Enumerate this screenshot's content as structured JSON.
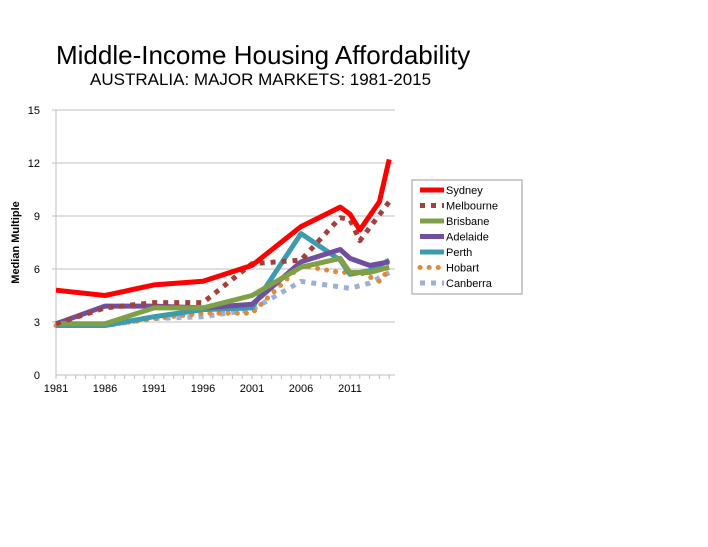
{
  "chart_data": {
    "type": "line",
    "title": "Middle-Income Housing Affordability",
    "subtitle": "AUSTRALIA: MAJOR MARKETS: 1981-2015",
    "xlabel": "",
    "ylabel": "Median Multiple",
    "xlim": [
      1981,
      2015
    ],
    "ylim": [
      0,
      15
    ],
    "yticks": [
      "0",
      "3",
      "6",
      "9",
      "12",
      "15"
    ],
    "xticks": [
      "1981",
      "1986",
      "1991",
      "1996",
      "2001",
      "2006",
      "2011"
    ],
    "grid": true,
    "legend_placement": "right",
    "series": [
      {
        "name": "Sydney",
        "color": "#ff0000",
        "style": "solid",
        "points": [
          [
            1981,
            4.8
          ],
          [
            1986,
            4.5
          ],
          [
            1991,
            5.1
          ],
          [
            1996,
            5.3
          ],
          [
            2001,
            6.2
          ],
          [
            2006,
            8.4
          ],
          [
            2010,
            9.5
          ],
          [
            2011,
            9.1
          ],
          [
            2012,
            8.2
          ],
          [
            2014,
            9.8
          ],
          [
            2015,
            12.2
          ]
        ]
      },
      {
        "name": "Melbourne",
        "color": "#a0413e",
        "style": "dotted",
        "points": [
          [
            1981,
            2.9
          ],
          [
            1986,
            3.8
          ],
          [
            1991,
            4.1
          ],
          [
            1996,
            4.1
          ],
          [
            2001,
            6.3
          ],
          [
            2006,
            6.5
          ],
          [
            2010,
            8.9
          ],
          [
            2011,
            8.8
          ],
          [
            2012,
            7.6
          ],
          [
            2015,
            9.8
          ]
        ]
      },
      {
        "name": "Brisbane",
        "color": "#7fa046",
        "style": "solid",
        "points": [
          [
            1981,
            2.9
          ],
          [
            1986,
            2.9
          ],
          [
            1991,
            3.8
          ],
          [
            1996,
            3.8
          ],
          [
            2001,
            4.5
          ],
          [
            2006,
            6.1
          ],
          [
            2010,
            6.6
          ],
          [
            2011,
            5.8
          ],
          [
            2013,
            5.8
          ],
          [
            2015,
            6.1
          ]
        ]
      },
      {
        "name": "Adelaide",
        "color": "#6f4f9e",
        "style": "solid",
        "points": [
          [
            1981,
            2.9
          ],
          [
            1986,
            3.9
          ],
          [
            1991,
            3.9
          ],
          [
            1996,
            3.8
          ],
          [
            2001,
            4.0
          ],
          [
            2006,
            6.4
          ],
          [
            2010,
            7.1
          ],
          [
            2011,
            6.6
          ],
          [
            2013,
            6.2
          ],
          [
            2015,
            6.4
          ]
        ]
      },
      {
        "name": "Perth",
        "color": "#3d9bb0",
        "style": "solid",
        "points": [
          [
            1981,
            2.8
          ],
          [
            1986,
            2.8
          ],
          [
            1991,
            3.3
          ],
          [
            1996,
            3.7
          ],
          [
            2001,
            3.8
          ],
          [
            2006,
            8.0
          ],
          [
            2010,
            6.5
          ],
          [
            2011,
            5.7
          ],
          [
            2013,
            5.9
          ],
          [
            2015,
            6.5
          ]
        ]
      },
      {
        "name": "Hobart",
        "color": "#e08a3c",
        "style": "dotted-round",
        "points": [
          [
            1981,
            2.8
          ],
          [
            1986,
            2.8
          ],
          [
            1991,
            3.2
          ],
          [
            1996,
            3.5
          ],
          [
            2001,
            3.5
          ],
          [
            2006,
            6.2
          ],
          [
            2010,
            5.8
          ],
          [
            2012,
            5.8
          ],
          [
            2014,
            5.3
          ],
          [
            2015,
            6.0
          ]
        ]
      },
      {
        "name": "Canberra",
        "color": "#9bb0d6",
        "style": "dotted",
        "points": [
          [
            1981,
            2.8
          ],
          [
            1986,
            2.8
          ],
          [
            1991,
            3.2
          ],
          [
            1996,
            3.3
          ],
          [
            2001,
            3.7
          ],
          [
            2006,
            5.3
          ],
          [
            2011,
            4.9
          ],
          [
            2013,
            5.2
          ],
          [
            2015,
            5.8
          ]
        ]
      }
    ]
  }
}
